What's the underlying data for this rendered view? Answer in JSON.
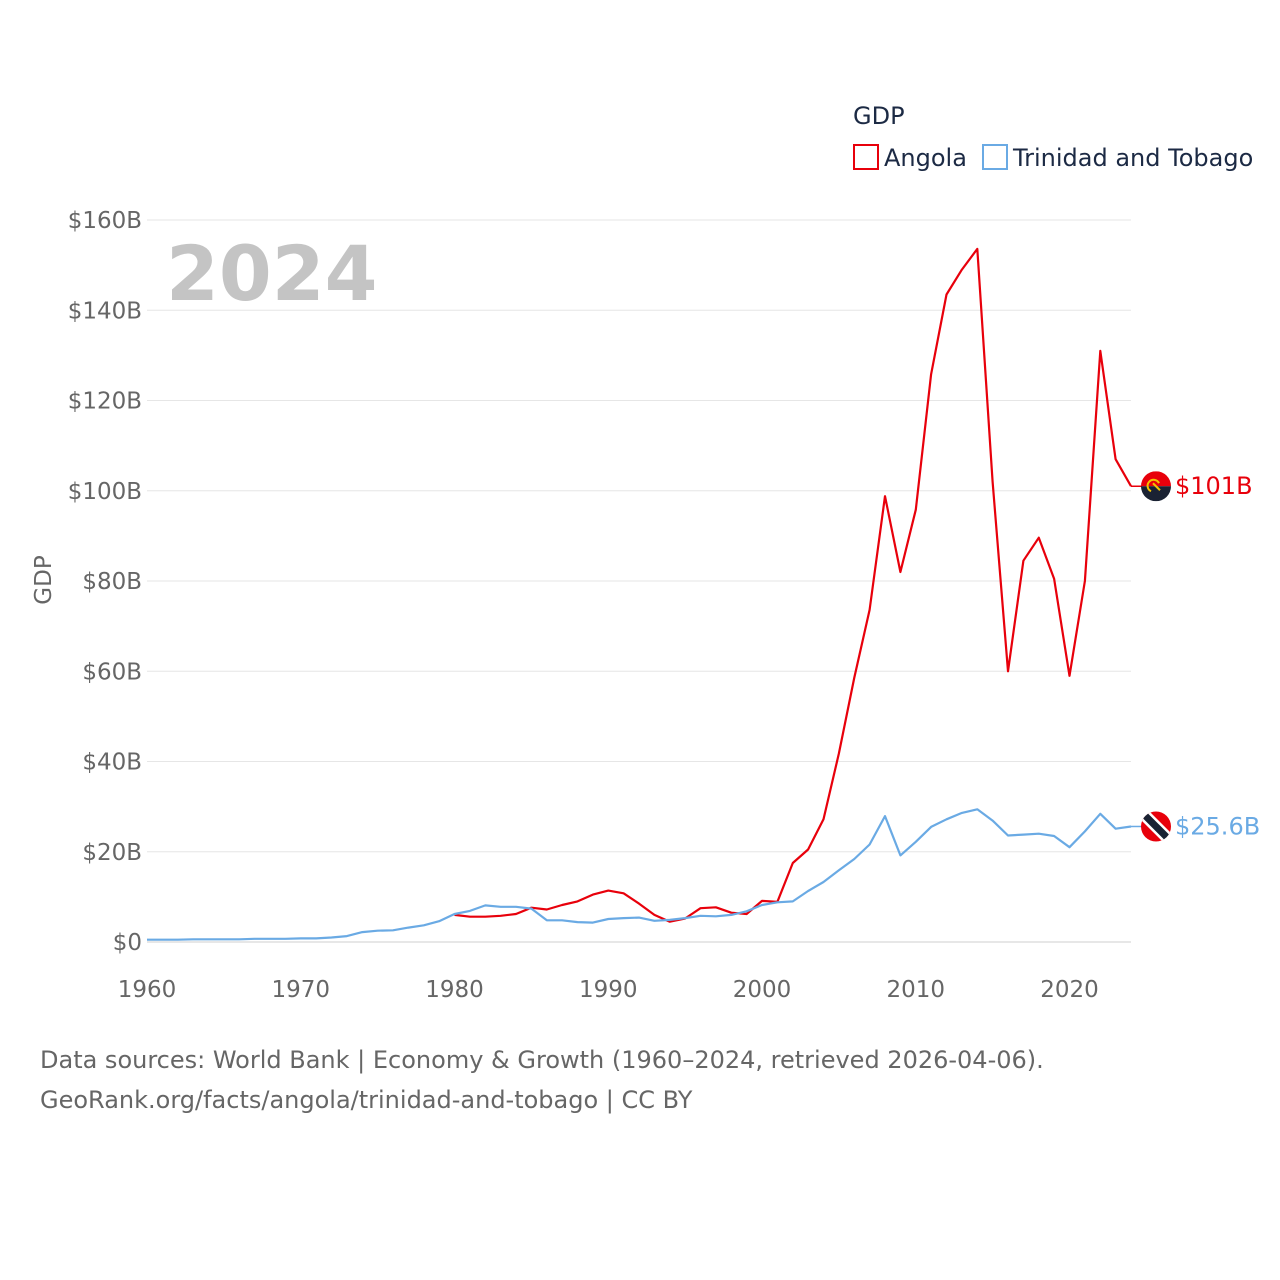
{
  "chart_data": {
    "type": "line",
    "year_label": "2024",
    "ylabel": "GDP",
    "xlabel": "",
    "legend_title": "GDP",
    "legend_position": "top-right",
    "xlim": [
      1960,
      2024
    ],
    "ylim": [
      0,
      160
    ],
    "y_ticks": [
      0,
      20,
      40,
      60,
      80,
      100,
      120,
      140,
      160
    ],
    "y_tick_labels": [
      "$0",
      "$20B",
      "$40B",
      "$60B",
      "$80B",
      "$100B",
      "$120B",
      "$140B",
      "$160B"
    ],
    "x_ticks": [
      1960,
      1970,
      1980,
      1990,
      2000,
      2010,
      2020
    ],
    "x_tick_labels": [
      "1960",
      "1970",
      "1980",
      "1990",
      "2000",
      "2010",
      "2020"
    ],
    "series": [
      {
        "name": "Angola",
        "color": "#e8000b",
        "end_label": "$101B",
        "flag_icon": "angola-flag-icon",
        "x": [
          1980,
          1981,
          1982,
          1983,
          1984,
          1985,
          1986,
          1987,
          1988,
          1989,
          1990,
          1991,
          1992,
          1993,
          1994,
          1995,
          1996,
          1997,
          1998,
          1999,
          2000,
          2001,
          2002,
          2003,
          2004,
          2005,
          2006,
          2007,
          2008,
          2009,
          2010,
          2011,
          2012,
          2013,
          2014,
          2015,
          2016,
          2017,
          2018,
          2019,
          2020,
          2021,
          2022,
          2023,
          2024
        ],
        "values": [
          6.0,
          5.6,
          5.6,
          5.8,
          6.2,
          7.6,
          7.2,
          8.2,
          9.0,
          10.5,
          11.4,
          10.8,
          8.5,
          6.0,
          4.5,
          5.2,
          7.5,
          7.7,
          6.5,
          6.2,
          9.1,
          8.9,
          17.5,
          20.5,
          27.2,
          41.8,
          58.6,
          73.6,
          98.8,
          82.0,
          95.8,
          125.8,
          143.5,
          149.0,
          153.6,
          102.0,
          60.0,
          84.5,
          89.6,
          80.5,
          59.0,
          80.0,
          131.0,
          107.0,
          101.0
        ]
      },
      {
        "name": "Trinidad and Tobago",
        "color": "#6aaae4",
        "end_label": "$25.6B",
        "flag_icon": "trinidad-flag-icon",
        "x": [
          1960,
          1961,
          1962,
          1963,
          1964,
          1965,
          1966,
          1967,
          1968,
          1969,
          1970,
          1971,
          1972,
          1973,
          1974,
          1975,
          1976,
          1977,
          1978,
          1979,
          1980,
          1981,
          1982,
          1983,
          1984,
          1985,
          1986,
          1987,
          1988,
          1989,
          1990,
          1991,
          1992,
          1993,
          1994,
          1995,
          1996,
          1997,
          1998,
          1999,
          2000,
          2001,
          2002,
          2003,
          2004,
          2005,
          2006,
          2007,
          2008,
          2009,
          2010,
          2011,
          2012,
          2013,
          2014,
          2015,
          2016,
          2017,
          2018,
          2019,
          2020,
          2021,
          2022,
          2023,
          2024
        ],
        "values": [
          0.5,
          0.5,
          0.5,
          0.6,
          0.6,
          0.6,
          0.6,
          0.7,
          0.7,
          0.7,
          0.8,
          0.8,
          1.0,
          1.3,
          2.2,
          2.5,
          2.6,
          3.2,
          3.7,
          4.6,
          6.2,
          6.9,
          8.1,
          7.8,
          7.8,
          7.4,
          4.8,
          4.8,
          4.4,
          4.3,
          5.1,
          5.3,
          5.4,
          4.7,
          4.9,
          5.3,
          5.8,
          5.7,
          6.0,
          6.8,
          8.2,
          8.8,
          9.0,
          11.3,
          13.3,
          15.9,
          18.4,
          21.6,
          27.9,
          19.2,
          22.2,
          25.5,
          27.2,
          28.6,
          29.4,
          26.9,
          23.6,
          23.8,
          24.0,
          23.5,
          21.0,
          24.5,
          28.4,
          25.1,
          25.6
        ]
      }
    ]
  },
  "footer": {
    "line1": "Data sources: World Bank | Economy & Growth (1960–2024, retrieved 2026-04-06).",
    "line2": "GeoRank.org/facts/angola/trinidad-and-tobago | CC BY"
  }
}
